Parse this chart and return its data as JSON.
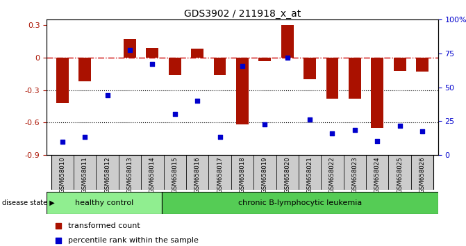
{
  "title": "GDS3902 / 211918_x_at",
  "samples": [
    "GSM658010",
    "GSM658011",
    "GSM658012",
    "GSM658013",
    "GSM658014",
    "GSM658015",
    "GSM658016",
    "GSM658017",
    "GSM658018",
    "GSM658019",
    "GSM658020",
    "GSM658021",
    "GSM658022",
    "GSM658023",
    "GSM658024",
    "GSM658025",
    "GSM658026"
  ],
  "bar_values": [
    -0.42,
    -0.22,
    0.0,
    0.17,
    0.09,
    -0.16,
    0.08,
    -0.16,
    -0.62,
    -0.03,
    0.3,
    -0.2,
    -0.38,
    -0.38,
    -0.65,
    -0.12,
    -0.13
  ],
  "dot_values": [
    -0.78,
    -0.73,
    -0.35,
    0.07,
    -0.06,
    -0.52,
    -0.4,
    -0.73,
    -0.08,
    -0.62,
    0.0,
    -0.57,
    -0.7,
    -0.67,
    -0.77,
    -0.63,
    -0.68
  ],
  "bar_color": "#aa1100",
  "dot_color": "#0000cc",
  "zero_line_color": "#cc0000",
  "grid_color": "#000000",
  "ylim_left": [
    -0.9,
    0.35
  ],
  "ylim_right": [
    0,
    100
  ],
  "yticks_left": [
    -0.9,
    -0.6,
    -0.3,
    0.0,
    0.3
  ],
  "ytick_labels_left": [
    "-0.9",
    "-0.6",
    "-0.3",
    "0",
    "0.3"
  ],
  "yticks_right": [
    0,
    25,
    50,
    75,
    100
  ],
  "ytick_labels_right": [
    "0",
    "25",
    "50",
    "75",
    "100%"
  ],
  "healthy_count": 5,
  "healthy_label": "healthy control",
  "disease_label": "chronic B-lymphocytic leukemia",
  "healthy_color": "#90ee90",
  "disease_color": "#55cc55",
  "label_bar": "transformed count",
  "label_dot": "percentile rank within the sample",
  "disease_state_label": "disease state"
}
